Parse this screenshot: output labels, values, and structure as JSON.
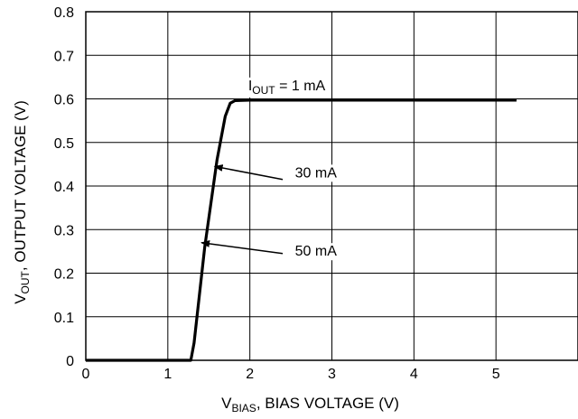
{
  "chart_data": {
    "type": "line",
    "xlabel": {
      "main": "V",
      "sub": "BIAS",
      "rest": ", BIAS VOLTAGE (V)"
    },
    "ylabel": {
      "main": "V",
      "sub": "OUT",
      "rest": ", OUTPUT VOLTAGE (V)"
    },
    "xlim": [
      0,
      6
    ],
    "ylim": [
      0,
      0.8
    ],
    "x_ticks": [
      "0",
      "1",
      "2",
      "3",
      "4",
      "5"
    ],
    "y_ticks": [
      "0",
      "0.1",
      "0.2",
      "0.3",
      "0.4",
      "0.5",
      "0.6",
      "0.7",
      "0.8"
    ],
    "grid": true,
    "series": [
      {
        "x": [
          0,
          1.28,
          1.32,
          1.45,
          1.6,
          1.7,
          1.76,
          1.82,
          2.0,
          3.0,
          4.0,
          5.25
        ],
        "y": [
          0,
          0,
          0.04,
          0.26,
          0.46,
          0.56,
          0.59,
          0.596,
          0.597,
          0.597,
          0.597,
          0.597
        ]
      }
    ],
    "annotations": [
      {
        "main": "I",
        "sub": "OUT",
        "rest": " = 1 mA",
        "x": 1.98,
        "y": 0.62
      },
      {
        "text": "30 mA",
        "x": 2.55,
        "y": 0.42,
        "arrow_to": [
          1.57,
          0.445
        ],
        "arrow_from": [
          2.4,
          0.415
        ]
      },
      {
        "text": "50 mA",
        "x": 2.55,
        "y": 0.24,
        "arrow_to": [
          1.41,
          0.27
        ],
        "arrow_from": [
          2.4,
          0.245
        ]
      }
    ]
  }
}
